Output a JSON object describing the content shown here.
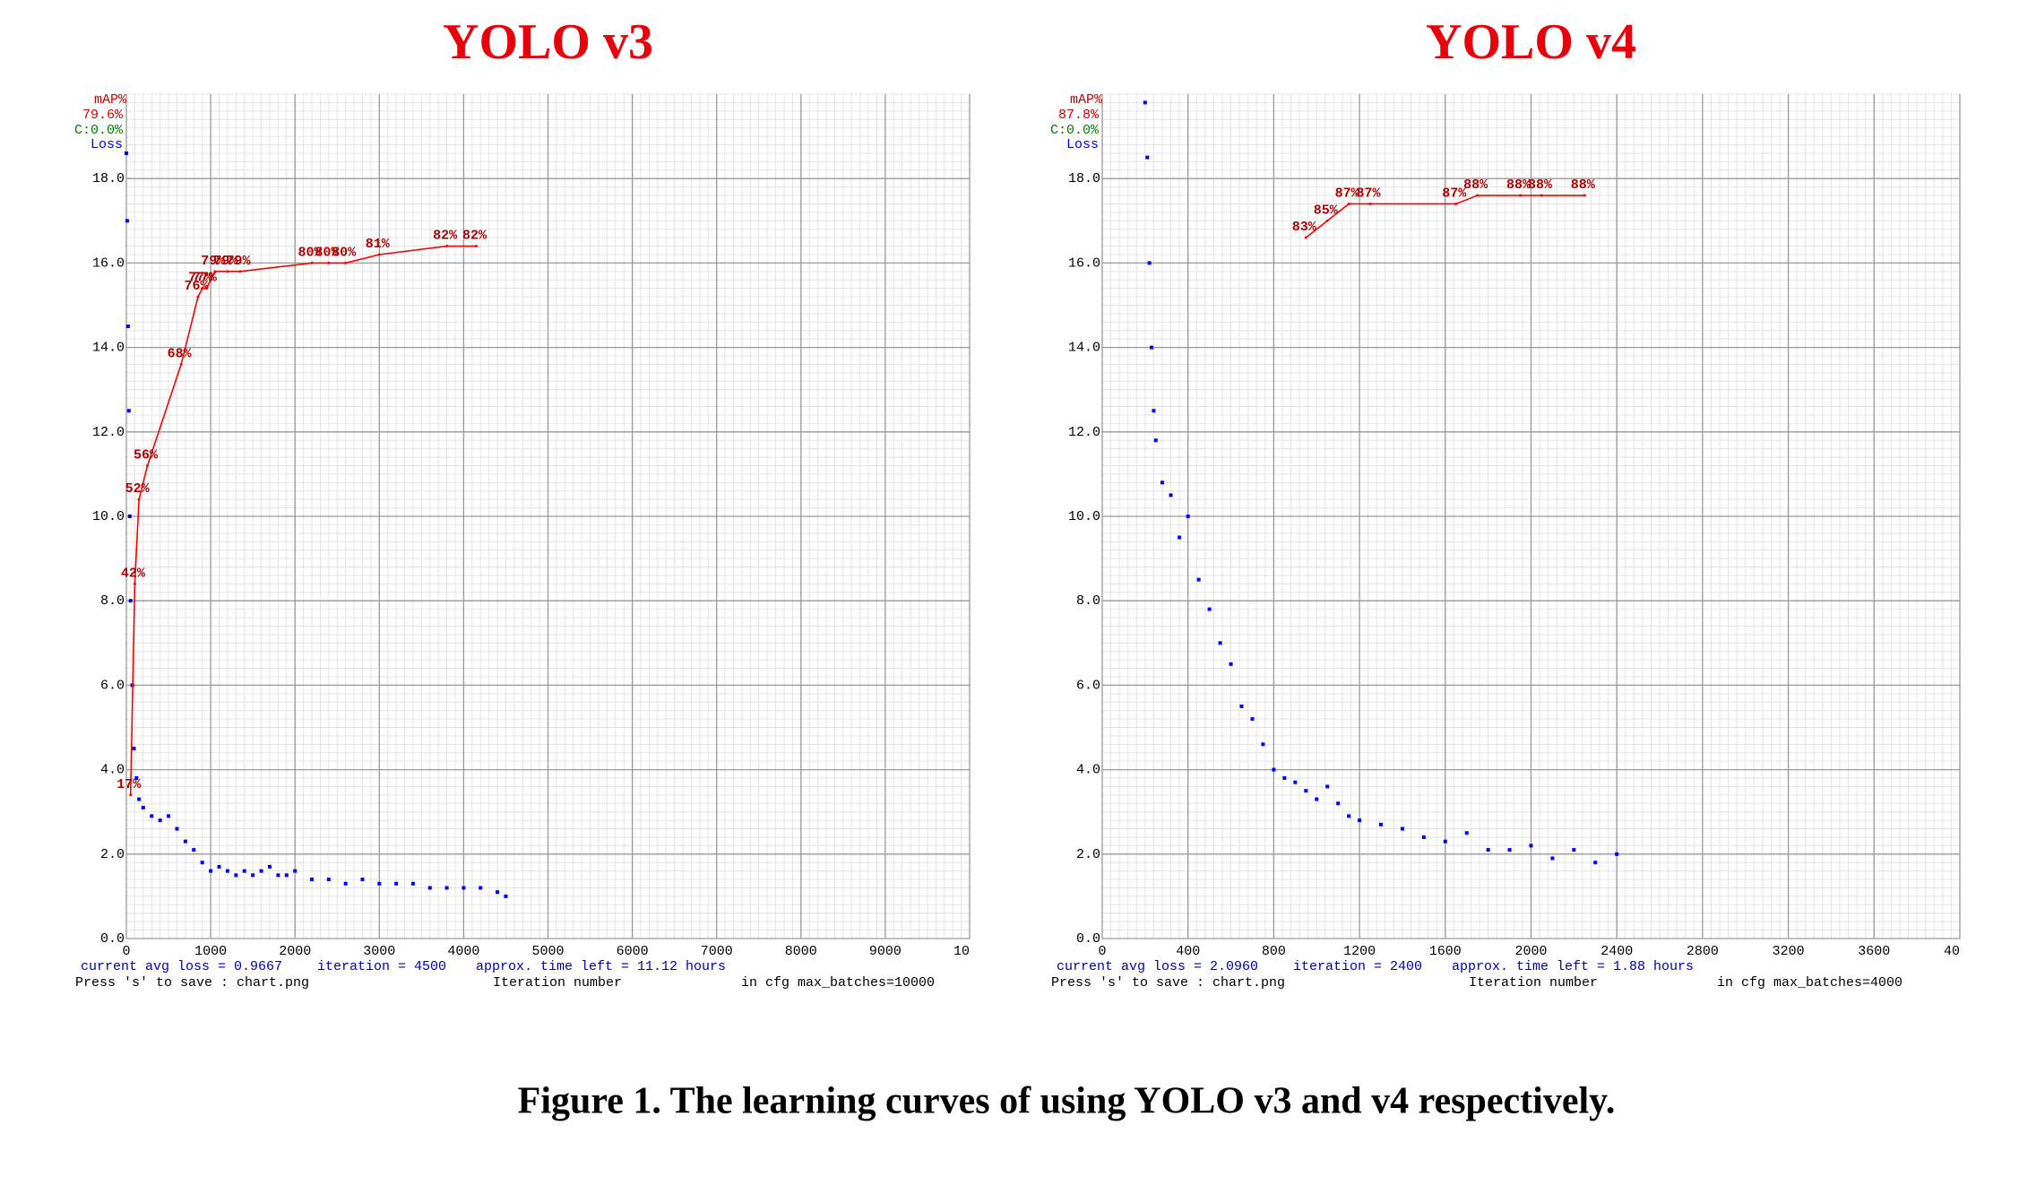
{
  "caption": "Figure 1. The learning curves of using YOLO v3 and v4 respectively.",
  "chart_data": [
    {
      "type": "scatter",
      "title": "YOLO v3",
      "xlim": [
        0,
        10000
      ],
      "ylim": [
        0,
        20
      ],
      "y2lim": [
        0,
        100
      ],
      "grid": true,
      "xticks": [
        0,
        1000,
        2000,
        3000,
        4000,
        5000,
        6000,
        7000,
        8000,
        9000,
        {
          "value": 10000,
          "label": "10"
        }
      ],
      "yticks": [
        {
          "value": 0,
          "label": "0.0"
        },
        {
          "value": 2,
          "label": "2.0"
        },
        {
          "value": 4,
          "label": "4.0"
        },
        {
          "value": 6,
          "label": "6.0"
        },
        {
          "value": 8,
          "label": "8.0"
        },
        {
          "value": 10,
          "label": "10.0"
        },
        {
          "value": 12,
          "label": "12.0"
        },
        {
          "value": 14,
          "label": "14.0"
        },
        {
          "value": 16,
          "label": "16.0"
        },
        {
          "value": 18,
          "label": "18.0"
        }
      ],
      "x_label": "Iteration number",
      "annotations": [
        "79.6%",
        "C:0.0%"
      ],
      "footer": [
        "current avg loss = 0.9667",
        "iteration = 4500",
        "approx. time left = 11.12 hours",
        "Press 's' to save : chart.png",
        "in cfg max_batches=10000"
      ],
      "series": [
        {
          "name": "Loss",
          "color": "#0000ff",
          "x": [
            0,
            10,
            20,
            30,
            40,
            50,
            70,
            90,
            120,
            150,
            200,
            300,
            400,
            500,
            600,
            700,
            800,
            900,
            1000,
            1100,
            1200,
            1300,
            1400,
            1500,
            1600,
            1700,
            1800,
            1900,
            2000,
            2200,
            2400,
            2600,
            2800,
            3000,
            3200,
            3400,
            3600,
            3800,
            4000,
            4200,
            4400,
            4500
          ],
          "values": [
            18.6,
            17,
            14.5,
            12.5,
            10,
            8,
            6,
            4.5,
            3.8,
            3.3,
            3.1,
            2.9,
            2.8,
            2.9,
            2.6,
            2.3,
            2.1,
            1.8,
            1.6,
            1.7,
            1.6,
            1.5,
            1.6,
            1.5,
            1.6,
            1.7,
            1.5,
            1.5,
            1.6,
            1.4,
            1.4,
            1.3,
            1.4,
            1.3,
            1.3,
            1.3,
            1.2,
            1.2,
            1.2,
            1.2,
            1.1,
            1.0
          ]
        },
        {
          "name": "mAP%",
          "color": "#ff0000",
          "axis": "y2",
          "x": [
            50,
            100,
            150,
            250,
            650,
            850,
            900,
            950,
            1050,
            1200,
            1350,
            2200,
            2400,
            2600,
            3000,
            3800,
            4150
          ],
          "values": [
            17,
            42,
            52,
            56,
            68,
            76,
            77,
            77,
            79,
            79,
            79,
            80,
            80,
            80,
            81,
            82,
            82
          ],
          "value_labels": [
            "17%",
            "42%",
            "52%",
            "56%",
            "68%",
            "76%",
            "77%",
            "77%",
            "79%",
            "79%",
            "79%",
            "80%",
            "80%",
            "80%",
            "81%",
            "82%",
            "82%"
          ]
        }
      ]
    },
    {
      "type": "scatter",
      "title": "YOLO v4",
      "xlim": [
        0,
        4000
      ],
      "ylim": [
        0,
        20
      ],
      "y2lim": [
        0,
        100
      ],
      "grid": true,
      "xticks": [
        0,
        400,
        800,
        1200,
        1600,
        2000,
        2400,
        2800,
        3200,
        3600,
        {
          "value": 4000,
          "label": "40"
        }
      ],
      "yticks": [
        {
          "value": 0,
          "label": "0.0"
        },
        {
          "value": 2,
          "label": "2.0"
        },
        {
          "value": 4,
          "label": "4.0"
        },
        {
          "value": 6,
          "label": "6.0"
        },
        {
          "value": 8,
          "label": "8.0"
        },
        {
          "value": 10,
          "label": "10.0"
        },
        {
          "value": 12,
          "label": "12.0"
        },
        {
          "value": 14,
          "label": "14.0"
        },
        {
          "value": 16,
          "label": "16.0"
        },
        {
          "value": 18,
          "label": "18.0"
        }
      ],
      "x_label": "Iteration number",
      "annotations": [
        "87.8%",
        "C:0.0%"
      ],
      "footer": [
        "current avg loss = 2.0960",
        "iteration = 2400",
        "approx. time left = 1.88 hours",
        "Press 's' to save : chart.png",
        "in cfg max_batches=4000"
      ],
      "series": [
        {
          "name": "Loss",
          "color": "#0000ff",
          "x": [
            200,
            210,
            220,
            230,
            240,
            250,
            280,
            320,
            360,
            400,
            450,
            500,
            550,
            600,
            650,
            700,
            750,
            800,
            850,
            900,
            950,
            1000,
            1050,
            1100,
            1150,
            1200,
            1300,
            1400,
            1500,
            1600,
            1700,
            1800,
            1900,
            2000,
            2100,
            2200,
            2300,
            2400
          ],
          "values": [
            19.8,
            18.5,
            16,
            14,
            12.5,
            11.8,
            10.8,
            10.5,
            9.5,
            10,
            8.5,
            7.8,
            7,
            6.5,
            5.5,
            5.2,
            4.6,
            4.0,
            3.8,
            3.7,
            3.5,
            3.3,
            3.6,
            3.2,
            2.9,
            2.8,
            2.7,
            2.6,
            2.4,
            2.3,
            2.5,
            2.1,
            2.1,
            2.2,
            1.9,
            2.1,
            1.8,
            2.0
          ]
        },
        {
          "name": "mAP%",
          "color": "#ff0000",
          "axis": "y2",
          "x": [
            950,
            1050,
            1150,
            1250,
            1650,
            1750,
            1950,
            2050,
            2250
          ],
          "values": [
            83,
            85,
            87,
            87,
            87,
            88,
            88,
            88,
            88
          ],
          "value_labels": [
            "83%",
            "85%",
            "87%",
            "87%",
            "87%",
            "88%",
            "88%",
            "88%",
            "88%"
          ]
        }
      ]
    }
  ]
}
